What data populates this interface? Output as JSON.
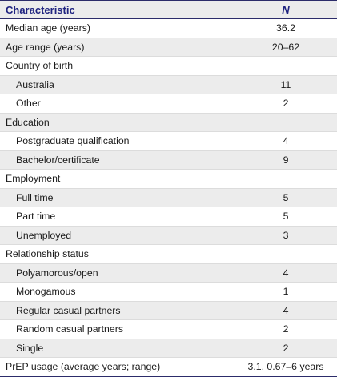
{
  "table": {
    "headers": {
      "characteristic": "Characteristic",
      "n": "N"
    },
    "rows": [
      {
        "label": "Median age (years)",
        "value": "36.2"
      },
      {
        "label": "Age range (years)",
        "value": "20–62"
      },
      {
        "label": "Country of birth",
        "value": ""
      },
      {
        "label": "Australia",
        "value": "11"
      },
      {
        "label": "Other",
        "value": "2"
      },
      {
        "label": "Education",
        "value": ""
      },
      {
        "label": "Postgraduate qualification",
        "value": "4"
      },
      {
        "label": "Bachelor/certificate",
        "value": "9"
      },
      {
        "label": "Employment",
        "value": ""
      },
      {
        "label": "Full time",
        "value": "5"
      },
      {
        "label": "Part time",
        "value": "5"
      },
      {
        "label": "Unemployed",
        "value": "3"
      },
      {
        "label": "Relationship status",
        "value": ""
      },
      {
        "label": "Polyamorous/open",
        "value": "4"
      },
      {
        "label": "Monogamous",
        "value": "1"
      },
      {
        "label": "Regular casual partners",
        "value": "4"
      },
      {
        "label": "Random casual partners",
        "value": "2"
      },
      {
        "label": "Single",
        "value": "2"
      },
      {
        "label": "PrEP usage (average years; range)",
        "value": "3.1, 0.67–6 years"
      }
    ]
  }
}
